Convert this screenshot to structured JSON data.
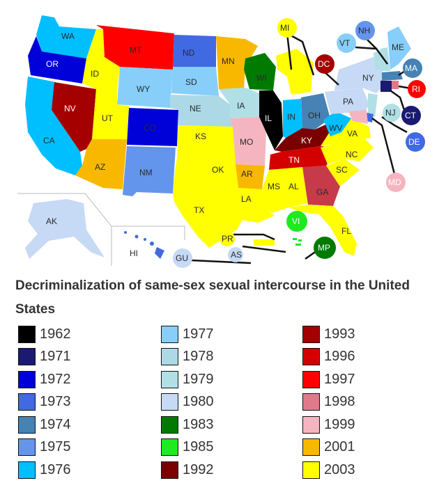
{
  "title": "Decriminalization of same-sex sexual intercourse in the United States",
  "legend": [
    {
      "year": "1962",
      "color": "#000000"
    },
    {
      "year": "1971",
      "color": "#1a1a72"
    },
    {
      "year": "1972",
      "color": "#0000d8"
    },
    {
      "year": "1973",
      "color": "#4169e1"
    },
    {
      "year": "1974",
      "color": "#4682b4"
    },
    {
      "year": "1975",
      "color": "#6495ed"
    },
    {
      "year": "1976",
      "color": "#00bfff"
    },
    {
      "year": "1977",
      "color": "#87cefa"
    },
    {
      "year": "1978",
      "color": "#add8e6"
    },
    {
      "year": "1979",
      "color": "#b0e0e6"
    },
    {
      "year": "1980",
      "color": "#c6d9f5"
    },
    {
      "year": "1983",
      "color": "#007a00"
    },
    {
      "year": "1985",
      "color": "#1eea1e"
    },
    {
      "year": "1992",
      "color": "#7a0000"
    },
    {
      "year": "1993",
      "color": "#a50000"
    },
    {
      "year": "1996",
      "color": "#d40000"
    },
    {
      "year": "1997",
      "color": "#ff0000"
    },
    {
      "year": "1998",
      "color": "#e07a8a"
    },
    {
      "year": "1999",
      "color": "#f5b5c0"
    },
    {
      "year": "2001",
      "color": "#f9b800"
    },
    {
      "year": "2003",
      "color": "#ffff00"
    }
  ],
  "labels": {
    "WA": "WA",
    "OR": "OR",
    "CA": "CA",
    "NV": "NV",
    "ID": "ID",
    "MT": "MT",
    "WY": "WY",
    "UT": "UT",
    "AZ": "AZ",
    "CO": "CO",
    "NM": "NM",
    "ND": "ND",
    "SD": "SD",
    "NE": "NE",
    "KS": "KS",
    "OK": "OK",
    "TX": "TX",
    "MN": "MN",
    "IA": "IA",
    "MO": "MO",
    "AR": "AR",
    "LA": "LA",
    "WI": "WI",
    "IL": "IL",
    "MI": "MI",
    "IN": "IN",
    "OH": "OH",
    "KY": "KY",
    "TN": "TN",
    "MS": "MS",
    "AL": "AL",
    "GA": "GA",
    "FL": "FL",
    "SC": "SC",
    "NC": "NC",
    "VA": "VA",
    "WV": "WV",
    "PA": "PA",
    "NY": "NY",
    "VT": "VT",
    "NH": "NH",
    "ME": "ME",
    "MA": "MA",
    "RI": "RI",
    "CT": "CT",
    "NJ": "NJ",
    "DE": "DE",
    "MD": "MD",
    "DC": "DC",
    "AK": "AK",
    "HI": "HI",
    "PR": "PR",
    "VI": "VI",
    "GU": "GU",
    "AS": "AS",
    "MP": "MP"
  }
}
